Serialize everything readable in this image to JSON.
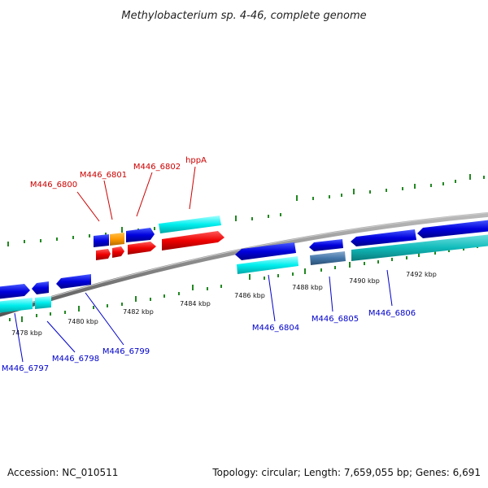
{
  "title": "Methylobacterium sp. 4-46, complete genome",
  "accession": "Accession: NC_010511",
  "summary": "Topology: circular; Length: 7,659,055 bp; Genes: 6,691",
  "scale_labels": [
    "7478 kbp",
    "7480 kbp",
    "7482 kbp",
    "7484 kbp",
    "7486 kbp",
    "7488 kbp",
    "7490 kbp",
    "7492 kbp"
  ],
  "genes_forward": [
    "M446_6800",
    "M446_6801",
    "M446_6802",
    "hppA"
  ],
  "genes_reverse": [
    "M446_6797",
    "M446_6798",
    "M446_6799",
    "M446_6804",
    "M446_6805",
    "M446_6806"
  ],
  "colors": {
    "forward_label": "#cc0000",
    "reverse_label": "#0000cc",
    "cds_blue": "#0000dd",
    "cds_red": "#ee0000",
    "cds_orange": "#ff9900",
    "cds_cyan": "#00eeee",
    "cds_teal": "#11bbbb",
    "cds_steel": "#4477aa",
    "backbone": "#888888",
    "tick": "#228822"
  }
}
